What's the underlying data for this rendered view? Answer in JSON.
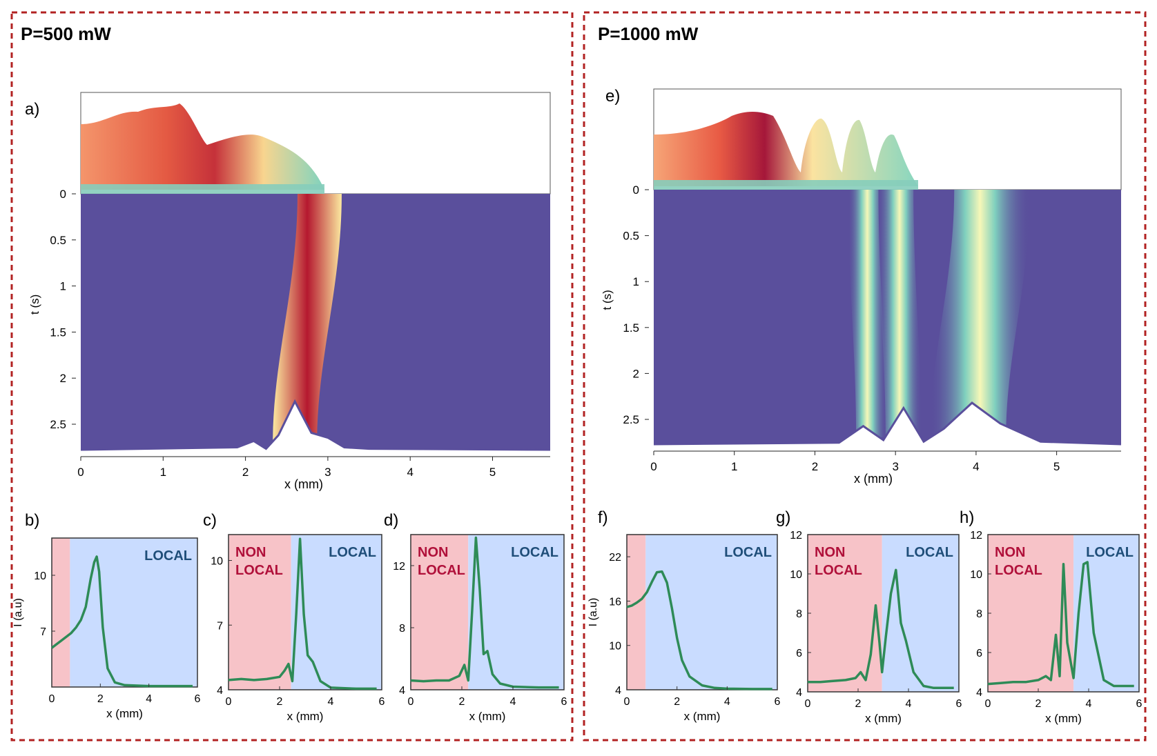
{
  "colors": {
    "frame": "#b22222",
    "nonlocal_bg": "#f7c3c8",
    "local_bg": "#c9dcff",
    "nonlocal_text": "#b0103a",
    "local_text": "#1f4e79",
    "trace": "#2e8b57",
    "base": "#5a4f9c"
  },
  "panels": {
    "left_title": "P=500 mW",
    "right_title": "P=1000 mW"
  },
  "chart_data": [
    {
      "id": "a",
      "label": "a)",
      "type": "area",
      "xlabel": "x (mm)",
      "ylabel": "t (s)",
      "xticks": [
        "0",
        "1",
        "2",
        "3",
        "4",
        "5"
      ],
      "yticks": [
        "0",
        "0.5",
        "1",
        "1.5",
        "2",
        "2.5"
      ],
      "xlim": [
        0,
        5.7
      ],
      "ylim": [
        0,
        2.8
      ],
      "beam_tracks": [
        {
          "name": "main beam",
          "x_at_t0": 2.9,
          "x_at_t_end": 2.6,
          "peak_intensity": "high"
        }
      ],
      "final_profile": {
        "x": [
          0,
          1.9,
          2.1,
          2.25,
          2.4,
          2.6,
          2.8,
          3.0,
          3.2,
          3.5,
          5.7
        ],
        "I": [
          0,
          0.05,
          0.18,
          0.02,
          0.3,
          1.0,
          0.35,
          0.25,
          0.05,
          0.02,
          0
        ]
      }
    },
    {
      "id": "e",
      "label": "e)",
      "type": "area",
      "xlabel": "x (mm)",
      "ylabel": "t (s)",
      "xticks": [
        "0",
        "1",
        "2",
        "3",
        "4",
        "5"
      ],
      "yticks": [
        "0",
        "0.5",
        "1",
        "1.5",
        "2",
        "2.5"
      ],
      "xlim": [
        0,
        5.8
      ],
      "ylim": [
        0,
        2.8
      ],
      "beam_tracks": [
        {
          "name": "filament 1",
          "x_at_t0": 2.6,
          "x_at_t_end": 2.7
        },
        {
          "name": "filament 2",
          "x_at_t0": 3.0,
          "x_at_t_end": 3.1
        },
        {
          "name": "filament 3",
          "x_at_t0": 4.2,
          "x_at_t_end": 3.9
        }
      ],
      "final_profile": {
        "x": [
          0,
          2.3,
          2.6,
          2.85,
          3.1,
          3.35,
          3.6,
          3.95,
          4.3,
          4.8,
          5.8
        ],
        "I": [
          0,
          0.03,
          0.35,
          0.08,
          0.7,
          0.05,
          0.3,
          0.8,
          0.4,
          0.05,
          0
        ]
      }
    },
    {
      "id": "b",
      "label": "b)",
      "type": "line",
      "xlabel": "x (mm)",
      "ylabel": "I (a.u)",
      "xlim": [
        0,
        6
      ],
      "ylim": [
        4,
        12
      ],
      "xticks": [
        0,
        2,
        4,
        6
      ],
      "yticks": [
        7,
        10
      ],
      "nonlocal_end": 0.75,
      "nonlocal_label": [],
      "local_label": [
        "LOCAL"
      ],
      "x": [
        0,
        0.2,
        0.4,
        0.6,
        0.8,
        1.0,
        1.2,
        1.4,
        1.6,
        1.75,
        1.85,
        1.95,
        2.1,
        2.3,
        2.6,
        3.0,
        4.0,
        5.0,
        5.8
      ],
      "y": [
        6.1,
        6.3,
        6.5,
        6.7,
        6.9,
        7.2,
        7.6,
        8.3,
        9.8,
        10.7,
        11.0,
        10.2,
        7.2,
        5.0,
        4.25,
        4.1,
        4.05,
        4.05,
        4.05
      ]
    },
    {
      "id": "c",
      "label": "c)",
      "type": "line",
      "xlabel": "x (mm)",
      "ylabel": "",
      "xlim": [
        0,
        6
      ],
      "ylim": [
        4,
        11.2
      ],
      "xticks": [
        0,
        2,
        4,
        6
      ],
      "yticks": [
        4,
        7,
        10
      ],
      "nonlocal_end": 2.45,
      "nonlocal_label": [
        "NON",
        "LOCAL"
      ],
      "local_label": [
        "LOCAL"
      ],
      "x": [
        0,
        0.5,
        1.0,
        1.5,
        2.0,
        2.2,
        2.35,
        2.5,
        2.65,
        2.8,
        2.95,
        3.1,
        3.3,
        3.6,
        4.0,
        5.0,
        5.8
      ],
      "y": [
        4.45,
        4.5,
        4.45,
        4.5,
        4.6,
        4.9,
        5.2,
        4.4,
        7.5,
        11.0,
        7.5,
        5.6,
        5.3,
        4.4,
        4.1,
        4.05,
        4.05
      ]
    },
    {
      "id": "d",
      "label": "d)",
      "type": "line",
      "xlabel": "x (mm)",
      "ylabel": "",
      "xlim": [
        0,
        6
      ],
      "ylim": [
        4,
        14
      ],
      "xticks": [
        0,
        2,
        4,
        6
      ],
      "yticks": [
        4,
        8,
        12
      ],
      "nonlocal_end": 2.25,
      "nonlocal_label": [
        "NON",
        "LOCAL"
      ],
      "local_label": [
        "LOCAL"
      ],
      "x": [
        0,
        0.5,
        1.0,
        1.5,
        1.9,
        2.1,
        2.25,
        2.4,
        2.55,
        2.7,
        2.85,
        3.0,
        3.2,
        3.5,
        4.0,
        5.0,
        5.8
      ],
      "y": [
        4.6,
        4.55,
        4.6,
        4.6,
        4.9,
        5.6,
        4.6,
        9.0,
        13.8,
        10.5,
        6.3,
        6.5,
        5.0,
        4.4,
        4.2,
        4.15,
        4.15
      ]
    },
    {
      "id": "f",
      "label": "f)",
      "type": "line",
      "xlabel": "x (mm)",
      "ylabel": "I (a.u)",
      "xlim": [
        0,
        6
      ],
      "ylim": [
        4,
        25
      ],
      "xticks": [
        0,
        2,
        4,
        6
      ],
      "yticks": [
        4,
        10,
        16,
        22
      ],
      "nonlocal_end": 0.75,
      "nonlocal_label": [],
      "local_label": [
        "LOCAL"
      ],
      "x": [
        0,
        0.2,
        0.4,
        0.6,
        0.8,
        1.0,
        1.2,
        1.4,
        1.6,
        1.8,
        2.0,
        2.2,
        2.5,
        3.0,
        3.5,
        4.0,
        5.0,
        5.8
      ],
      "y": [
        15.2,
        15.4,
        15.8,
        16.3,
        17.2,
        18.6,
        19.9,
        20.0,
        18.5,
        15.0,
        11.0,
        8.0,
        5.8,
        4.6,
        4.25,
        4.15,
        4.1,
        4.1
      ]
    },
    {
      "id": "g",
      "label": "g)",
      "type": "line",
      "xlabel": "x (mm)",
      "ylabel": "",
      "xlim": [
        0,
        6
      ],
      "ylim": [
        4,
        12
      ],
      "xticks": [
        0,
        2,
        4,
        6
      ],
      "yticks": [
        4,
        6,
        8,
        10,
        12
      ],
      "nonlocal_end": 2.95,
      "nonlocal_label": [
        "NON",
        "LOCAL"
      ],
      "local_label": [
        "LOCAL"
      ],
      "x": [
        0,
        0.5,
        1.0,
        1.5,
        1.9,
        2.1,
        2.3,
        2.5,
        2.7,
        2.85,
        2.95,
        3.1,
        3.3,
        3.5,
        3.7,
        3.9,
        4.2,
        4.6,
        5.0,
        5.8
      ],
      "y": [
        4.5,
        4.5,
        4.55,
        4.6,
        4.7,
        5.0,
        4.6,
        5.9,
        8.4,
        6.5,
        5.0,
        6.8,
        9.0,
        10.2,
        7.5,
        6.6,
        5.0,
        4.3,
        4.2,
        4.2
      ]
    },
    {
      "id": "h",
      "label": "h)",
      "type": "line",
      "xlabel": "x (mm)",
      "ylabel": "",
      "xlim": [
        0,
        6
      ],
      "ylim": [
        4,
        12
      ],
      "xticks": [
        0,
        2,
        4,
        6
      ],
      "yticks": [
        4,
        6,
        8,
        10,
        12
      ],
      "nonlocal_end": 3.4,
      "nonlocal_label": [
        "NON",
        "LOCAL"
      ],
      "local_label": [
        "LOCAL"
      ],
      "x": [
        0,
        0.5,
        1.0,
        1.5,
        2.0,
        2.3,
        2.5,
        2.7,
        2.85,
        3.0,
        3.15,
        3.4,
        3.6,
        3.8,
        3.95,
        4.2,
        4.6,
        5.0,
        5.8
      ],
      "y": [
        4.4,
        4.45,
        4.5,
        4.5,
        4.6,
        4.8,
        4.6,
        6.9,
        4.8,
        10.5,
        6.5,
        4.7,
        8.0,
        10.5,
        10.6,
        7.0,
        4.6,
        4.3,
        4.3
      ]
    }
  ]
}
